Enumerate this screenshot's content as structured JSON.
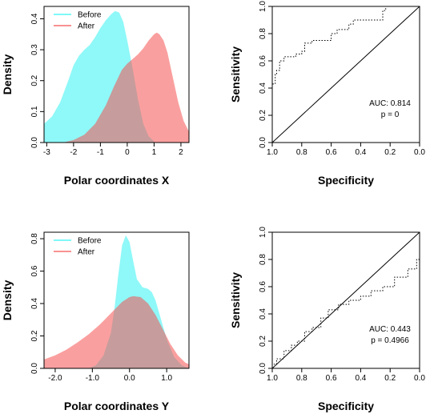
{
  "chart_data": [
    {
      "type": "area",
      "xlabel": "Polar coordinates X",
      "ylabel": "Density",
      "xlim": [
        -3.1,
        2.3
      ],
      "ylim": [
        0,
        0.44
      ],
      "xticks": [
        -3,
        -2,
        -1,
        0,
        1,
        2
      ],
      "xtick_labels": [
        "-3",
        "-2",
        "-1",
        "0",
        "1",
        "2"
      ],
      "yticks": [
        0,
        0.1,
        0.2,
        0.3,
        0.4
      ],
      "ytick_labels": [
        "0.0",
        "0.1",
        "0.2",
        "0.3",
        "0.4"
      ],
      "legend_position": "top-left",
      "series": [
        {
          "name": "Before",
          "color": "#33f3f3",
          "x": [
            -3.1,
            -2.8,
            -2.5,
            -2.2,
            -2.0,
            -1.8,
            -1.6,
            -1.4,
            -1.2,
            -1.0,
            -0.8,
            -0.6,
            -0.45,
            -0.3,
            -0.15,
            0.0,
            0.2,
            0.4,
            0.6,
            0.8,
            1.0
          ],
          "y": [
            0.06,
            0.085,
            0.13,
            0.2,
            0.25,
            0.28,
            0.3,
            0.315,
            0.34,
            0.37,
            0.395,
            0.415,
            0.425,
            0.42,
            0.39,
            0.33,
            0.24,
            0.14,
            0.06,
            0.02,
            0.004
          ]
        },
        {
          "name": "After",
          "color": "#f55050",
          "x": [
            -2.3,
            -2.0,
            -1.6,
            -1.2,
            -0.8,
            -0.5,
            -0.2,
            0.0,
            0.2,
            0.4,
            0.6,
            0.8,
            1.0,
            1.1,
            1.2,
            1.35,
            1.5,
            1.7,
            1.9,
            2.1,
            2.3
          ],
          "y": [
            0.002,
            0.008,
            0.025,
            0.06,
            0.12,
            0.18,
            0.235,
            0.255,
            0.27,
            0.285,
            0.305,
            0.33,
            0.35,
            0.355,
            0.35,
            0.33,
            0.29,
            0.21,
            0.13,
            0.07,
            0.035
          ]
        }
      ]
    },
    {
      "type": "line",
      "xlabel": "Specificity",
      "ylabel": "Sensitivity",
      "xlim": [
        1.0,
        0.0
      ],
      "ylim": [
        0,
        1.0
      ],
      "xticks": [
        1.0,
        0.8,
        0.6,
        0.4,
        0.2,
        0.0
      ],
      "xtick_labels": [
        "1.0",
        "0.8",
        "0.6",
        "0.4",
        "0.2",
        "0.0"
      ],
      "yticks": [
        0,
        0.2,
        0.4,
        0.6,
        0.8,
        1.0
      ],
      "ytick_labels": [
        "0.0",
        "0.2",
        "0.4",
        "0.6",
        "0.8",
        "1.0"
      ],
      "annotation": [
        "AUC: 0.814",
        "p = 0"
      ],
      "series": [
        {
          "style": "dotted",
          "x": [
            1.0,
            1.0,
            0.98,
            0.98,
            0.97,
            0.97,
            0.95,
            0.95,
            0.92,
            0.92,
            0.84,
            0.84,
            0.8,
            0.8,
            0.78,
            0.78,
            0.73,
            0.73,
            0.6,
            0.6,
            0.56,
            0.56,
            0.48,
            0.48,
            0.45,
            0.45,
            0.25,
            0.25,
            0.23,
            0.23,
            0.0
          ],
          "y": [
            0.0,
            0.43,
            0.43,
            0.5,
            0.5,
            0.53,
            0.53,
            0.6,
            0.6,
            0.63,
            0.63,
            0.65,
            0.65,
            0.67,
            0.67,
            0.73,
            0.73,
            0.75,
            0.75,
            0.8,
            0.8,
            0.83,
            0.83,
            0.87,
            0.87,
            0.9,
            0.9,
            0.97,
            0.97,
            1.0,
            1.0
          ]
        },
        {
          "style": "solid",
          "x": [
            1.0,
            0.0
          ],
          "y": [
            0.0,
            1.0
          ]
        }
      ]
    },
    {
      "type": "area",
      "xlabel": "Polar coordinates Y",
      "ylabel": "Density",
      "xlim": [
        -2.3,
        1.6
      ],
      "ylim": [
        0,
        0.84
      ],
      "xticks": [
        -2.0,
        -1.0,
        0.0,
        1.0
      ],
      "xtick_labels": [
        "-2.0",
        "-1.0",
        "0.0",
        "1.0"
      ],
      "yticks": [
        0,
        0.2,
        0.4,
        0.6,
        0.8
      ],
      "ytick_labels": [
        "0.0",
        "0.2",
        "0.4",
        "0.6",
        "0.8"
      ],
      "legend_position": "top-left",
      "series": [
        {
          "name": "Before",
          "color": "#33f3f3",
          "x": [
            -1.1,
            -0.9,
            -0.7,
            -0.5,
            -0.4,
            -0.3,
            -0.2,
            -0.1,
            0.0,
            0.1,
            0.2,
            0.35,
            0.5,
            0.6,
            0.7,
            0.8,
            1.0,
            1.2,
            1.4,
            1.6
          ],
          "y": [
            0.0,
            0.02,
            0.08,
            0.22,
            0.38,
            0.58,
            0.76,
            0.82,
            0.78,
            0.66,
            0.55,
            0.5,
            0.49,
            0.47,
            0.42,
            0.34,
            0.18,
            0.07,
            0.02,
            0.0
          ]
        },
        {
          "name": "After",
          "color": "#f55050",
          "x": [
            -2.3,
            -2.0,
            -1.7,
            -1.4,
            -1.1,
            -0.8,
            -0.5,
            -0.2,
            0.0,
            0.1,
            0.3,
            0.5,
            0.7,
            0.9,
            1.1,
            1.3,
            1.5,
            1.6
          ],
          "y": [
            0.055,
            0.08,
            0.115,
            0.16,
            0.21,
            0.27,
            0.34,
            0.41,
            0.44,
            0.445,
            0.44,
            0.4,
            0.33,
            0.24,
            0.15,
            0.08,
            0.035,
            0.025
          ]
        }
      ]
    },
    {
      "type": "line",
      "xlabel": "Specificity",
      "ylabel": "Sensitivity",
      "xlim": [
        1.0,
        0.0
      ],
      "ylim": [
        0,
        1.0
      ],
      "xticks": [
        1.0,
        0.8,
        0.6,
        0.4,
        0.2,
        0.0
      ],
      "xtick_labels": [
        "1.0",
        "0.8",
        "0.6",
        "0.4",
        "0.2",
        "0.0"
      ],
      "yticks": [
        0,
        0.2,
        0.4,
        0.6,
        0.8,
        1.0
      ],
      "ytick_labels": [
        "0.0",
        "0.2",
        "0.4",
        "0.6",
        "0.8",
        "1.0"
      ],
      "annotation": [
        "AUC: 0.443",
        "p = 0.4966"
      ],
      "series": [
        {
          "style": "dotted",
          "x": [
            1.0,
            1.0,
            0.97,
            0.97,
            0.92,
            0.92,
            0.87,
            0.87,
            0.83,
            0.83,
            0.78,
            0.78,
            0.73,
            0.73,
            0.67,
            0.67,
            0.62,
            0.62,
            0.55,
            0.55,
            0.48,
            0.48,
            0.4,
            0.4,
            0.33,
            0.33,
            0.25,
            0.25,
            0.17,
            0.17,
            0.08,
            0.08,
            0.02,
            0.02,
            0.0,
            0.0
          ],
          "y": [
            0.0,
            0.03,
            0.03,
            0.07,
            0.07,
            0.13,
            0.13,
            0.17,
            0.17,
            0.2,
            0.2,
            0.27,
            0.27,
            0.3,
            0.3,
            0.37,
            0.37,
            0.43,
            0.43,
            0.47,
            0.47,
            0.5,
            0.5,
            0.53,
            0.53,
            0.57,
            0.57,
            0.6,
            0.6,
            0.67,
            0.67,
            0.73,
            0.73,
            0.8,
            0.8,
            1.0
          ]
        },
        {
          "style": "solid",
          "x": [
            1.0,
            0.0
          ],
          "y": [
            0.0,
            1.0
          ]
        }
      ]
    }
  ]
}
